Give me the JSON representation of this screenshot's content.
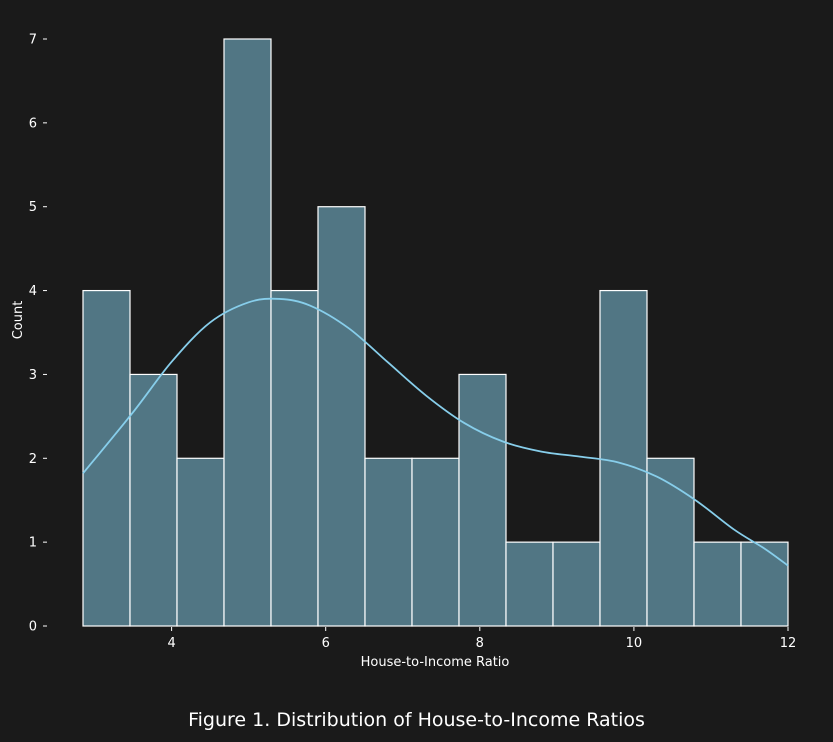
{
  "chart_data": {
    "type": "bar",
    "subtype": "histogram_with_kde",
    "xlabel": "House-to-Income Ratio",
    "ylabel": "Count",
    "xlim": [
      2.85,
      12.0
    ],
    "ylim": [
      0,
      7
    ],
    "x_ticks": [
      4,
      6,
      8,
      10,
      12
    ],
    "y_ticks": [
      0,
      1,
      2,
      3,
      4,
      5,
      6,
      7
    ],
    "bin_edges": [
      2.85,
      3.46,
      4.07,
      4.68,
      5.29,
      5.9,
      6.51,
      7.12,
      7.73,
      8.34,
      8.95,
      9.56,
      10.17,
      10.78,
      11.39,
      12.0
    ],
    "counts": [
      4,
      3,
      2,
      7,
      4,
      5,
      2,
      2,
      3,
      1,
      1,
      4,
      2,
      1,
      1
    ],
    "kde": {
      "x": [
        2.85,
        3.5,
        4.0,
        4.5,
        5.0,
        5.4,
        5.8,
        6.3,
        6.8,
        7.3,
        7.8,
        8.3,
        8.8,
        9.3,
        9.8,
        10.3,
        10.8,
        11.3,
        11.7,
        12.0
      ],
      "y": [
        1.82,
        2.55,
        3.15,
        3.62,
        3.86,
        3.9,
        3.82,
        3.55,
        3.15,
        2.75,
        2.42,
        2.2,
        2.08,
        2.02,
        1.95,
        1.78,
        1.5,
        1.15,
        0.92,
        0.72
      ]
    },
    "bar_color": "#517684",
    "bar_edge_color": "#ffffff",
    "kde_color": "#87ceeb",
    "grid": false,
    "legend": "none"
  },
  "caption": "Figure 1. Distribution of House-to-Income Ratios"
}
